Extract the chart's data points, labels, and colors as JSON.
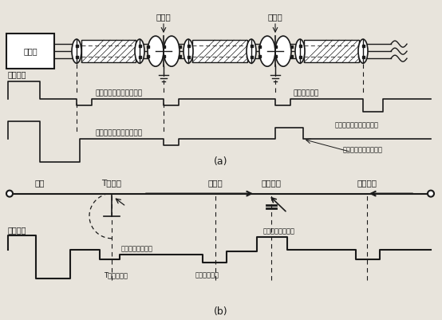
{
  "fig_width": 5.54,
  "fig_height": 4.01,
  "dpi": 100,
  "bg_color": "#e8e4dc",
  "line_color": "#1a1a1a",
  "section_a": {
    "box_label": "电缆仪",
    "connector_label_1": "对接头",
    "connector_label_2": "对接头",
    "wave_label": "发送脉冲",
    "wave1_label": "无故障范围上观察的波形",
    "wave2_label": "有故障范围上观察的波形",
    "reflect1_label": "对接头反射波",
    "end_label": "末端接续盒压持的负象中",
    "fault_label": "从反射点返回的三脉冲",
    "label_a": "(a)"
  },
  "section_b": {
    "cable_label": "电缆",
    "t_label": "T型接头",
    "conn_label": "对接头",
    "fault_label": "短路故障",
    "end_label": "电缆终端",
    "wave_label": "发送脉冲",
    "t_echo_label": "T型接头回波",
    "tri_label": "三叉头接头反射波",
    "conn_echo_label": "对接头反射波",
    "fault_echo_label": "短路故障点反射波",
    "label_b": "(b)"
  }
}
